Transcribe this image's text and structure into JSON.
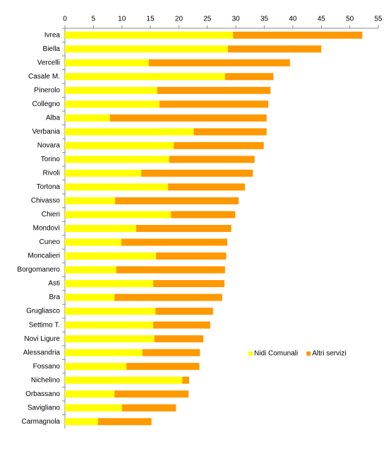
{
  "chart_data": {
    "type": "stacked-bar-horizontal",
    "categories": [
      "Ivrea",
      "Biella",
      "Vercelli",
      "Casale M.",
      "Pinerolo",
      "Collegno",
      "Alba",
      "Verbania",
      "Novara",
      "Torino",
      "Rivoli",
      "Tortona",
      "Chivasso",
      "Chieri",
      "Mondovì",
      "Cuneo",
      "Moncalieri",
      "Borgomanero",
      "Asti",
      "Bra",
      "Grugliasco",
      "Settimo T.",
      "Novi Ligure",
      "Alessandria",
      "Fossano",
      "Nichelino",
      "Orbassano",
      "Savigliano",
      "Carmagnola"
    ],
    "series": [
      {
        "name": "Nidi Comunali",
        "color": "#ffff00",
        "values": [
          29.5,
          28.6,
          14.7,
          28.1,
          16.2,
          16.6,
          7.9,
          22.6,
          19.1,
          18.3,
          13.4,
          18.1,
          8.8,
          18.6,
          12.5,
          9.9,
          16.0,
          9.0,
          15.5,
          8.7,
          15.9,
          15.5,
          15.7,
          13.6,
          10.8,
          20.6,
          8.7,
          10.0,
          5.8
        ]
      },
      {
        "name": "Altri servizi",
        "color": "#ff9900",
        "values": [
          22.7,
          16.4,
          24.8,
          8.5,
          19.9,
          19.1,
          27.5,
          12.8,
          15.8,
          15.0,
          19.6,
          13.5,
          21.7,
          11.3,
          16.7,
          18.6,
          12.3,
          19.1,
          12.5,
          18.9,
          10.1,
          10.0,
          8.6,
          10.1,
          12.8,
          1.2,
          13.0,
          9.5,
          9.4
        ]
      }
    ],
    "xlim": [
      0,
      55
    ],
    "xticks": [
      0,
      5,
      10,
      15,
      20,
      25,
      30,
      35,
      40,
      45,
      50,
      55
    ],
    "axis_position": "top",
    "legend": "lower right",
    "grid": false
  }
}
